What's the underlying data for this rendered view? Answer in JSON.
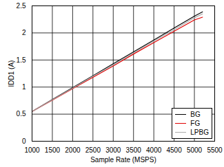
{
  "chart_data": {
    "type": "line",
    "x_label": "Sample Rate (MSPS)",
    "y_label": "IDD1 (A)",
    "x": [
      1000,
      1500,
      2000,
      2500,
      3000,
      3500,
      4000,
      4500,
      5000,
      5200
    ],
    "series": [
      {
        "name": "BG",
        "color": "#000000",
        "values": [
          0.55,
          0.77,
          0.99,
          1.21,
          1.43,
          1.65,
          1.87,
          2.09,
          2.31,
          2.39
        ]
      },
      {
        "name": "FG",
        "color": "#e00000",
        "values": [
          0.55,
          0.76,
          0.97,
          1.18,
          1.39,
          1.61,
          1.82,
          2.03,
          2.24,
          2.29
        ]
      },
      {
        "name": "LPBG",
        "color": "#aaaaaa",
        "values": [
          0.55,
          0.765,
          0.98,
          1.2,
          1.41,
          1.63,
          1.85,
          2.06,
          2.28,
          2.35
        ]
      }
    ],
    "xlim": [
      1000,
      5500
    ],
    "xticks": [
      1000,
      1500,
      2000,
      2500,
      3000,
      3500,
      4000,
      4500,
      5000,
      5500
    ],
    "ylim": [
      0,
      2.5
    ],
    "yticks": [
      0,
      0.5,
      1,
      1.5,
      2,
      2.5
    ],
    "grid": true,
    "legend": "bottom-right"
  }
}
